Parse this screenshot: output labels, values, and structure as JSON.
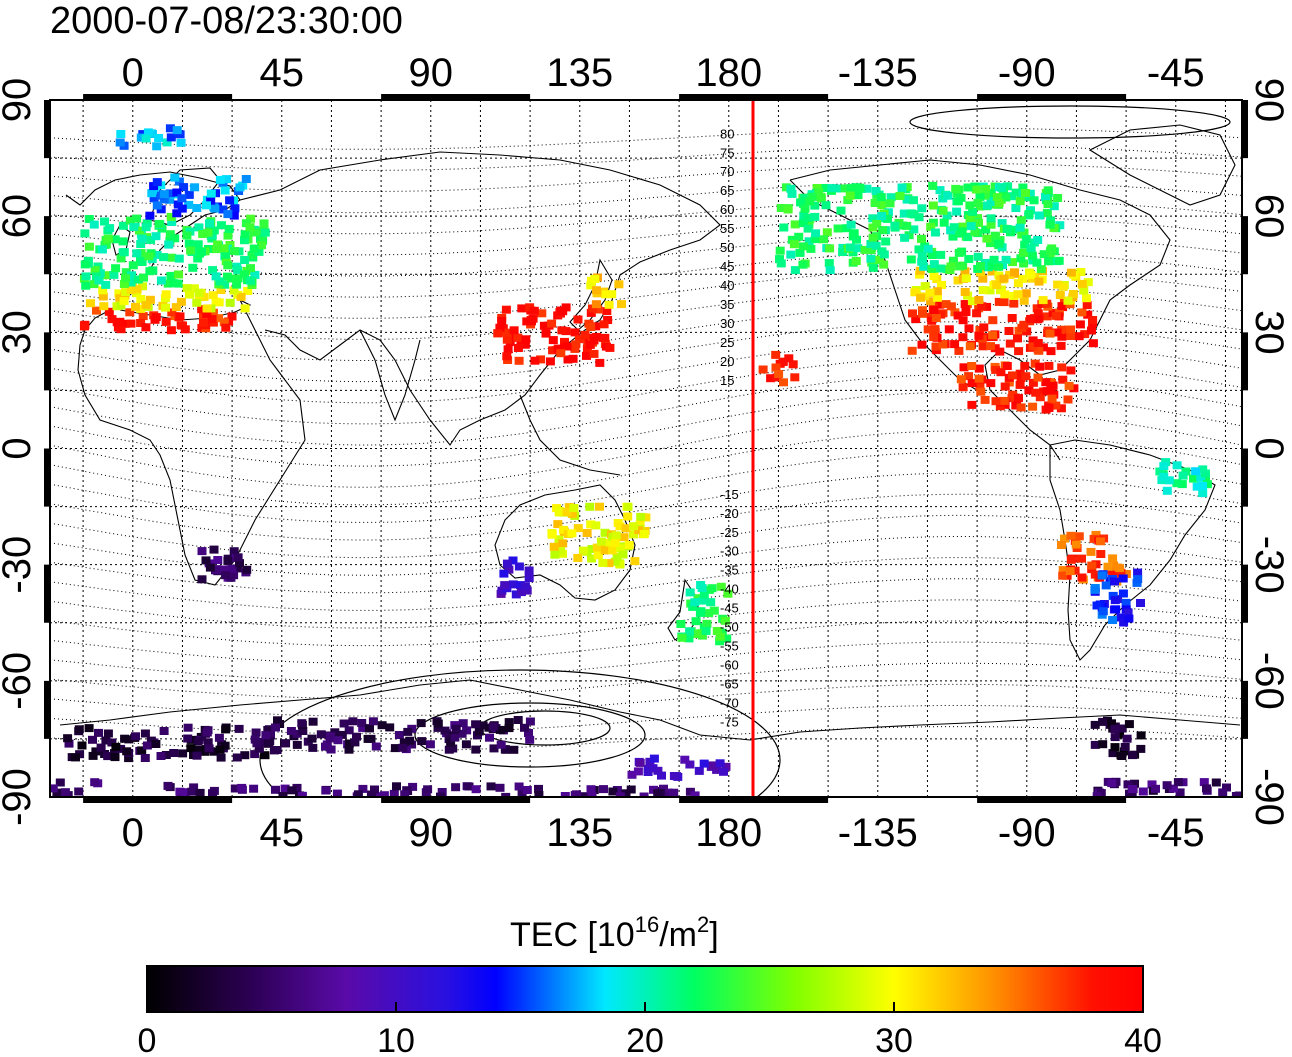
{
  "title": "2000-07-08/23:30:00",
  "map": {
    "top_lon_labels": [
      "0",
      "45",
      "90",
      "135",
      "180",
      "-135",
      "-90",
      "-45"
    ],
    "bottom_lon_labels": [
      "0",
      "45",
      "90",
      "135",
      "180",
      "-135",
      "-90",
      "-45"
    ],
    "left_lat_labels": [
      "90",
      "60",
      "30",
      "0",
      "-30",
      "-60",
      "-90"
    ],
    "right_lat_labels": [
      "90",
      "60",
      "30",
      "0",
      "-30",
      "-60",
      "-90"
    ],
    "magnetic_lat_labels": [
      "80",
      "75",
      "70",
      "65",
      "60",
      "55",
      "50",
      "45",
      "40",
      "35",
      "30",
      "25",
      "20",
      "15",
      "-15",
      "-20",
      "-25",
      "-30",
      "-35",
      "-40",
      "-45",
      "-50",
      "-55",
      "-60",
      "-65",
      "-70",
      "-75"
    ],
    "terminator_color": "#ff0000"
  },
  "colorbar": {
    "label_main": "TEC  [10",
    "label_sup1": "16",
    "label_mid": "/m",
    "label_sup2": "2",
    "label_end": "]",
    "ticks": [
      "0",
      "10",
      "20",
      "30",
      "40"
    ],
    "range": [
      0,
      40
    ],
    "colormap": [
      "#000000",
      "#3a0070",
      "#5a0aa8",
      "#0000ff",
      "#00e0ff",
      "#00ff40",
      "#ffff00",
      "#ff8800",
      "#ff0000"
    ]
  },
  "chart_data": {
    "type": "heatmap",
    "title": "2000-07-08/23:30:00",
    "value_label": "TEC  [10^16/m^2]",
    "value_range": [
      0,
      40
    ],
    "regions": [
      {
        "lon": [
          -15,
          30
        ],
        "lat": [
          30,
          36
        ],
        "tec": 38
      },
      {
        "lon": [
          -15,
          35
        ],
        "lat": [
          36,
          42
        ],
        "tec": 30
      },
      {
        "lon": [
          -15,
          40
        ],
        "lat": [
          42,
          60
        ],
        "tec": 22
      },
      {
        "lon": [
          5,
          35
        ],
        "lat": [
          60,
          70
        ],
        "tec": 16
      },
      {
        "lon": [
          -5,
          15
        ],
        "lat": [
          78,
          83
        ],
        "tec": 17
      },
      {
        "lon": [
          110,
          145
        ],
        "lat": [
          22,
          37
        ],
        "tec": 39
      },
      {
        "lon": [
          138,
          148
        ],
        "lat": [
          37,
          45
        ],
        "tec": 32
      },
      {
        "lon": [
          -125,
          -70
        ],
        "lat": [
          25,
          38
        ],
        "tec": 38
      },
      {
        "lon": [
          -125,
          -70
        ],
        "lat": [
          38,
          46
        ],
        "tec": 31
      },
      {
        "lon": [
          -165,
          -80
        ],
        "lat": [
          46,
          68
        ],
        "tec": 22
      },
      {
        "lon": [
          -170,
          -160
        ],
        "lat": [
          17,
          25
        ],
        "tec": 38
      },
      {
        "lon": [
          -110,
          -75
        ],
        "lat": [
          10,
          22
        ],
        "tec": 38
      },
      {
        "lon": [
          -80,
          -60
        ],
        "lat": [
          -35,
          -22
        ],
        "tec": 36
      },
      {
        "lon": [
          -70,
          -55
        ],
        "lat": [
          -45,
          -32
        ],
        "tec": 14
      },
      {
        "lon": [
          -50,
          -35
        ],
        "lat": [
          -12,
          -3
        ],
        "tec": 20
      },
      {
        "lon": [
          110,
          120
        ],
        "lat": [
          -38,
          -28
        ],
        "tec": 10
      },
      {
        "lon": [
          125,
          155
        ],
        "lat": [
          -30,
          -15
        ],
        "tec": 30
      },
      {
        "lon": [
          165,
          180
        ],
        "lat": [
          -50,
          -35
        ],
        "tec": 22
      },
      {
        "lon": [
          20,
          35
        ],
        "lat": [
          -35,
          -25
        ],
        "tec": 5
      },
      {
        "lon": [
          -20,
          40
        ],
        "lat": [
          -80,
          -72
        ],
        "tec": 3
      },
      {
        "lon": [
          40,
          120
        ],
        "lat": [
          -78,
          -70
        ],
        "tec": 4
      },
      {
        "lon": [
          150,
          180
        ],
        "lat": [
          -85,
          -80
        ],
        "tec": 10
      },
      {
        "lon": [
          -70,
          -55
        ],
        "lat": [
          -80,
          -70
        ],
        "tec": 2
      },
      {
        "lon": [
          10,
          170
        ],
        "lat": [
          -90,
          -87
        ],
        "tec": 5
      },
      {
        "lon": [
          -70,
          -10
        ],
        "lat": [
          -90,
          -86
        ],
        "tec": 5
      }
    ]
  }
}
